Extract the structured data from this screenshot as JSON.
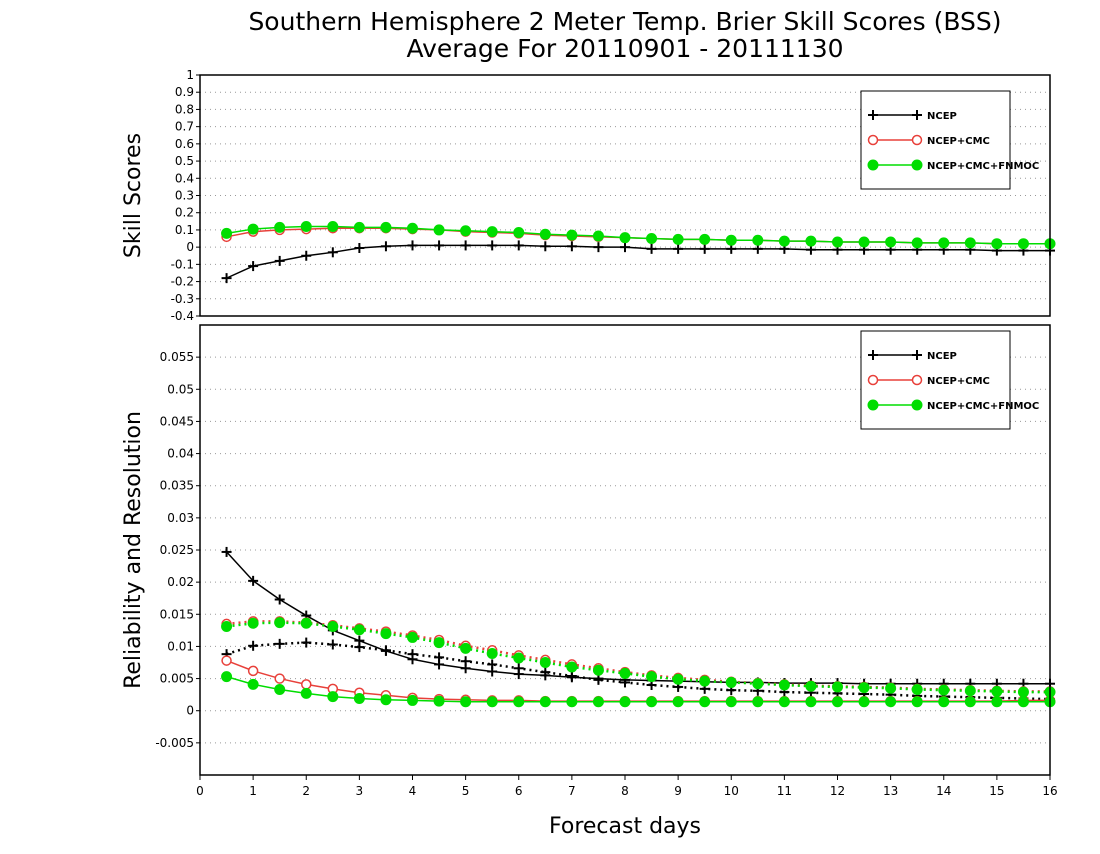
{
  "title": {
    "line1": "Southern Hemisphere 2 Meter Temp. Brier Skill Scores (BSS)",
    "line2": "Average For 20110901 - 20111130"
  },
  "colors": {
    "ncep": "#000000",
    "ncep_cmc": "#e8403a",
    "ncep_cmc_fnmoc": "#00dd00",
    "grid": "#999999"
  },
  "chart_data": [
    {
      "type": "line",
      "ylabel": "Skill Scores",
      "xlim": [
        0,
        16
      ],
      "ylim": [
        -0.4,
        1
      ],
      "yticks": [
        "-0.4",
        "-0.3",
        "-0.2",
        "-0.1",
        "0",
        "0.1",
        "0.2",
        "0.3",
        "0.4",
        "0.5",
        "0.6",
        "0.7",
        "0.8",
        "0.9",
        "1"
      ],
      "grid": true,
      "legend_position": "top-right",
      "x": [
        0.5,
        1,
        1.5,
        2,
        2.5,
        3,
        3.5,
        4,
        4.5,
        5,
        5.5,
        6,
        6.5,
        7,
        7.5,
        8,
        8.5,
        9,
        9.5,
        10,
        10.5,
        11,
        11.5,
        12,
        12.5,
        13,
        13.5,
        14,
        14.5,
        15,
        15.5,
        16
      ],
      "series": [
        {
          "name": "NCEP",
          "color_key": "ncep",
          "marker": "plus",
          "style": "solid",
          "values": [
            -0.18,
            -0.11,
            -0.08,
            -0.05,
            -0.03,
            -0.005,
            0.005,
            0.01,
            0.01,
            0.01,
            0.01,
            0.01,
            0.005,
            0.005,
            0.0,
            0.0,
            -0.01,
            -0.01,
            -0.01,
            -0.01,
            -0.01,
            -0.01,
            -0.015,
            -0.015,
            -0.015,
            -0.015,
            -0.015,
            -0.015,
            -0.015,
            -0.02,
            -0.02,
            -0.02
          ]
        },
        {
          "name": "NCEP+CMC",
          "color_key": "ncep_cmc",
          "marker": "open-circle",
          "style": "solid",
          "values": [
            0.06,
            0.09,
            0.1,
            0.105,
            0.11,
            0.11,
            0.11,
            0.105,
            0.1,
            0.09,
            0.085,
            0.08,
            0.07,
            0.065,
            0.06,
            0.055,
            0.05,
            0.045,
            0.045,
            0.04,
            0.04,
            0.035,
            0.035,
            0.03,
            0.03,
            0.03,
            0.025,
            0.025,
            0.025,
            0.02,
            0.02,
            0.02
          ]
        },
        {
          "name": "NCEP+CMC+FNMOC",
          "color_key": "ncep_cmc_fnmoc",
          "marker": "filled-circle",
          "style": "solid",
          "values": [
            0.08,
            0.105,
            0.115,
            0.12,
            0.12,
            0.115,
            0.115,
            0.11,
            0.1,
            0.095,
            0.09,
            0.085,
            0.075,
            0.07,
            0.065,
            0.055,
            0.05,
            0.045,
            0.045,
            0.04,
            0.04,
            0.035,
            0.035,
            0.03,
            0.03,
            0.03,
            0.025,
            0.025,
            0.025,
            0.02,
            0.02,
            0.02
          ]
        }
      ]
    },
    {
      "type": "line",
      "ylabel": "Reliability and Resolution",
      "xlabel": "Forecast days",
      "xlim": [
        0,
        16
      ],
      "ylim": [
        -0.01,
        0.06
      ],
      "xticks": [
        "0",
        "1",
        "2",
        "3",
        "4",
        "5",
        "6",
        "7",
        "8",
        "9",
        "10",
        "11",
        "12",
        "13",
        "14",
        "15",
        "16"
      ],
      "yticks": [
        "-0.005",
        "0",
        "0.005",
        "0.01",
        "0.015",
        "0.02",
        "0.025",
        "0.03",
        "0.035",
        "0.04",
        "0.045",
        "0.05",
        "0.055"
      ],
      "grid": true,
      "legend_position": "top-right",
      "x": [
        0.5,
        1,
        1.5,
        2,
        2.5,
        3,
        3.5,
        4,
        4.5,
        5,
        5.5,
        6,
        6.5,
        7,
        7.5,
        8,
        8.5,
        9,
        9.5,
        10,
        10.5,
        11,
        11.5,
        12,
        12.5,
        13,
        13.5,
        14,
        14.5,
        15,
        15.5,
        16
      ],
      "series": [
        {
          "name": "NCEP",
          "metric": "reliability",
          "color_key": "ncep",
          "marker": "plus",
          "style": "solid",
          "values": [
            0.0247,
            0.0202,
            0.0173,
            0.0148,
            0.0125,
            0.0109,
            0.0093,
            0.008,
            0.0072,
            0.0066,
            0.0061,
            0.0057,
            0.0055,
            0.0052,
            0.005,
            0.0048,
            0.0047,
            0.0046,
            0.0045,
            0.0044,
            0.0044,
            0.0043,
            0.0043,
            0.0043,
            0.0042,
            0.0042,
            0.0042,
            0.0042,
            0.0042,
            0.0042,
            0.0042,
            0.0042
          ]
        },
        {
          "name": "NCEP",
          "metric": "resolution",
          "color_key": "ncep",
          "marker": "plus",
          "style": "dotted",
          "values": [
            0.0088,
            0.0101,
            0.0104,
            0.0106,
            0.0103,
            0.0099,
            0.0094,
            0.0088,
            0.0083,
            0.0077,
            0.0072,
            0.0066,
            0.006,
            0.0054,
            0.0048,
            0.0044,
            0.004,
            0.0037,
            0.0034,
            0.0032,
            0.0031,
            0.0029,
            0.0028,
            0.0027,
            0.0026,
            0.0025,
            0.0023,
            0.0022,
            0.0021,
            0.002,
            0.0019,
            0.0018
          ]
        },
        {
          "name": "NCEP+CMC",
          "metric": "reliability",
          "color_key": "ncep_cmc",
          "marker": "open-circle",
          "style": "solid",
          "values": [
            0.0078,
            0.0062,
            0.005,
            0.0041,
            0.0034,
            0.0028,
            0.0024,
            0.002,
            0.0018,
            0.0017,
            0.0016,
            0.0016,
            0.0015,
            0.0015,
            0.0015,
            0.0015,
            0.0015,
            0.0015,
            0.0015,
            0.0015,
            0.0015,
            0.0015,
            0.0015,
            0.0015,
            0.0015,
            0.0015,
            0.0015,
            0.0015,
            0.0015,
            0.0015,
            0.0016,
            0.0016
          ]
        },
        {
          "name": "NCEP+CMC",
          "metric": "resolution",
          "color_key": "ncep_cmc",
          "marker": "open-circle",
          "style": "dotted",
          "values": [
            0.0135,
            0.0139,
            0.0139,
            0.0137,
            0.0133,
            0.0128,
            0.0123,
            0.0117,
            0.011,
            0.0101,
            0.0094,
            0.0086,
            0.0079,
            0.0072,
            0.0066,
            0.006,
            0.0055,
            0.0051,
            0.0048,
            0.0045,
            0.0043,
            0.0041,
            0.0039,
            0.0038,
            0.0037,
            0.0036,
            0.0034,
            0.0033,
            0.0032,
            0.0031,
            0.003,
            0.003
          ]
        },
        {
          "name": "NCEP+CMC+FNMOC",
          "metric": "reliability",
          "color_key": "ncep_cmc_fnmoc",
          "marker": "filled-circle",
          "style": "solid",
          "values": [
            0.0053,
            0.0041,
            0.0033,
            0.0027,
            0.0022,
            0.0019,
            0.0017,
            0.0016,
            0.0015,
            0.0014,
            0.0014,
            0.0014,
            0.0014,
            0.0014,
            0.0014,
            0.0014,
            0.0014,
            0.0014,
            0.0014,
            0.0014,
            0.0014,
            0.0014,
            0.0014,
            0.0014,
            0.0014,
            0.0014,
            0.0014,
            0.0014,
            0.0014,
            0.0014,
            0.0014,
            0.0014
          ]
        },
        {
          "name": "NCEP+CMC+FNMOC",
          "metric": "resolution",
          "color_key": "ncep_cmc_fnmoc",
          "marker": "filled-circle",
          "style": "dotted",
          "values": [
            0.0131,
            0.0136,
            0.0137,
            0.0136,
            0.0131,
            0.0126,
            0.012,
            0.0114,
            0.0106,
            0.0097,
            0.0089,
            0.0082,
            0.0075,
            0.0068,
            0.0063,
            0.0058,
            0.0053,
            0.0049,
            0.0046,
            0.0044,
            0.0042,
            0.004,
            0.0038,
            0.0037,
            0.0036,
            0.0035,
            0.0033,
            0.0032,
            0.0031,
            0.003,
            0.0029,
            0.0029
          ]
        }
      ]
    }
  ],
  "legend": [
    "NCEP",
    "NCEP+CMC",
    "NCEP+CMC+FNMOC"
  ]
}
